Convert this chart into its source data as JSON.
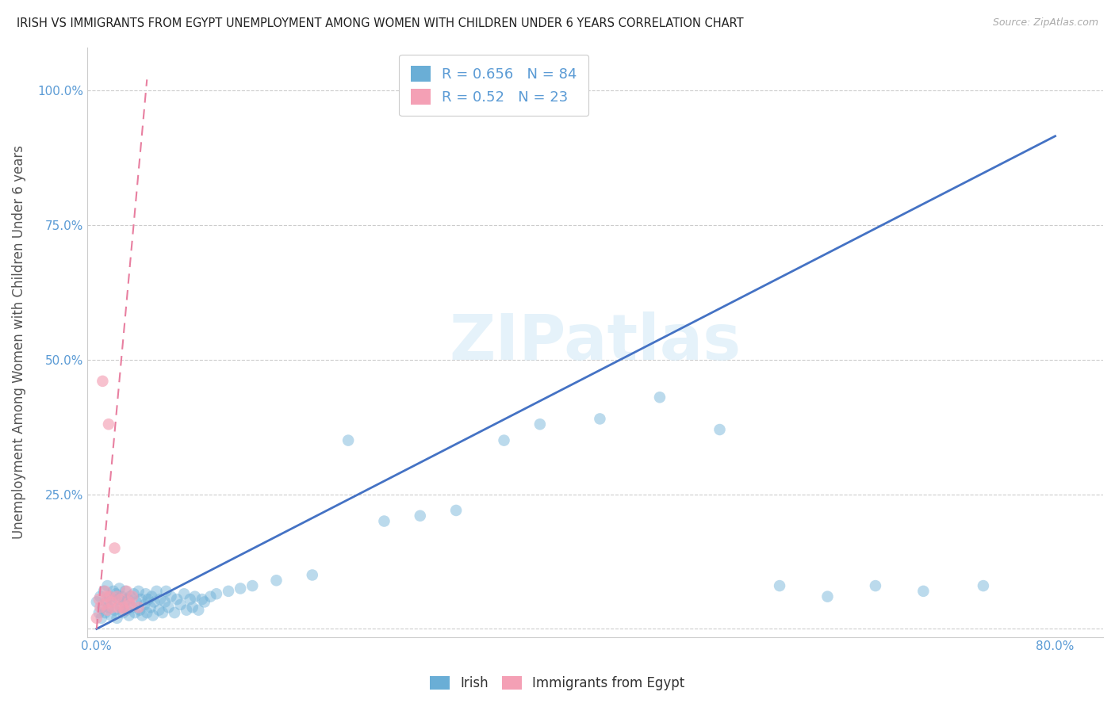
{
  "title": "IRISH VS IMMIGRANTS FROM EGYPT UNEMPLOYMENT AMONG WOMEN WITH CHILDREN UNDER 6 YEARS CORRELATION CHART",
  "source": "Source: ZipAtlas.com",
  "ylabel": "Unemployment Among Women with Children Under 6 years",
  "xlim_min": -0.008,
  "xlim_max": 0.84,
  "ylim_min": -0.015,
  "ylim_max": 1.08,
  "xtick_positions": [
    0.0,
    0.1,
    0.2,
    0.3,
    0.4,
    0.5,
    0.6,
    0.7,
    0.8
  ],
  "xtick_labels": [
    "0.0%",
    "",
    "",
    "",
    "",
    "",
    "",
    "",
    "80.0%"
  ],
  "ytick_positions": [
    0.0,
    0.25,
    0.5,
    0.75,
    1.0
  ],
  "ytick_labels": [
    "",
    "25.0%",
    "50.0%",
    "75.0%",
    "100.0%"
  ],
  "irish_R": 0.656,
  "irish_N": 84,
  "egypt_R": 0.52,
  "egypt_N": 23,
  "irish_color": "#6aaed6",
  "egypt_color": "#f4a0b5",
  "irish_line_color": "#4472c4",
  "egypt_line_color": "#e87fa0",
  "watermark": "ZIPatlas",
  "legend_irish": "Irish",
  "legend_egypt": "Immigrants from Egypt",
  "background_color": "#ffffff",
  "grid_color": "#cccccc",
  "title_color": "#222222",
  "axis_label_color": "#555555",
  "tick_label_color": "#5b9bd5",
  "irish_scatter_x": [
    0.0,
    0.002,
    0.003,
    0.004,
    0.005,
    0.006,
    0.007,
    0.008,
    0.009,
    0.01,
    0.011,
    0.012,
    0.013,
    0.014,
    0.015,
    0.016,
    0.017,
    0.018,
    0.019,
    0.02,
    0.021,
    0.022,
    0.023,
    0.024,
    0.025,
    0.026,
    0.027,
    0.028,
    0.03,
    0.031,
    0.032,
    0.033,
    0.035,
    0.036,
    0.037,
    0.038,
    0.04,
    0.041,
    0.042,
    0.043,
    0.045,
    0.046,
    0.047,
    0.048,
    0.05,
    0.052,
    0.053,
    0.055,
    0.057,
    0.058,
    0.06,
    0.062,
    0.065,
    0.067,
    0.07,
    0.073,
    0.075,
    0.078,
    0.08,
    0.082,
    0.085,
    0.088,
    0.09,
    0.095,
    0.1,
    0.11,
    0.12,
    0.13,
    0.15,
    0.18,
    0.21,
    0.24,
    0.27,
    0.3,
    0.34,
    0.37,
    0.42,
    0.47,
    0.52,
    0.57,
    0.61,
    0.65,
    0.69,
    0.74
  ],
  "irish_scatter_y": [
    0.05,
    0.03,
    0.06,
    0.02,
    0.04,
    0.07,
    0.03,
    0.05,
    0.08,
    0.04,
    0.06,
    0.025,
    0.055,
    0.07,
    0.035,
    0.065,
    0.02,
    0.055,
    0.075,
    0.04,
    0.06,
    0.03,
    0.05,
    0.07,
    0.035,
    0.055,
    0.025,
    0.06,
    0.04,
    0.065,
    0.03,
    0.05,
    0.07,
    0.035,
    0.055,
    0.025,
    0.045,
    0.065,
    0.03,
    0.055,
    0.04,
    0.06,
    0.025,
    0.05,
    0.07,
    0.035,
    0.055,
    0.03,
    0.05,
    0.07,
    0.04,
    0.06,
    0.03,
    0.055,
    0.045,
    0.065,
    0.035,
    0.055,
    0.04,
    0.06,
    0.035,
    0.055,
    0.05,
    0.06,
    0.065,
    0.07,
    0.075,
    0.08,
    0.09,
    0.1,
    0.35,
    0.2,
    0.21,
    0.22,
    0.35,
    0.38,
    0.39,
    0.43,
    0.37,
    0.08,
    0.06,
    0.08,
    0.07,
    0.08
  ],
  "egypt_scatter_x": [
    0.0,
    0.002,
    0.003,
    0.005,
    0.006,
    0.007,
    0.008,
    0.009,
    0.01,
    0.011,
    0.012,
    0.013,
    0.015,
    0.017,
    0.018,
    0.02,
    0.022,
    0.023,
    0.025,
    0.027,
    0.028,
    0.03,
    0.035
  ],
  "egypt_scatter_y": [
    0.02,
    0.055,
    0.04,
    0.46,
    0.045,
    0.07,
    0.06,
    0.035,
    0.38,
    0.06,
    0.05,
    0.04,
    0.15,
    0.06,
    0.04,
    0.055,
    0.04,
    0.035,
    0.07,
    0.05,
    0.045,
    0.06,
    0.04
  ],
  "irish_line_x0": 0.0,
  "irish_line_x1": 0.8,
  "irish_line_y0": 0.0,
  "irish_line_y1": 0.915,
  "egypt_line_x0": 0.0,
  "egypt_line_x1": 0.042,
  "egypt_line_y0": 0.0,
  "egypt_line_y1": 1.02
}
